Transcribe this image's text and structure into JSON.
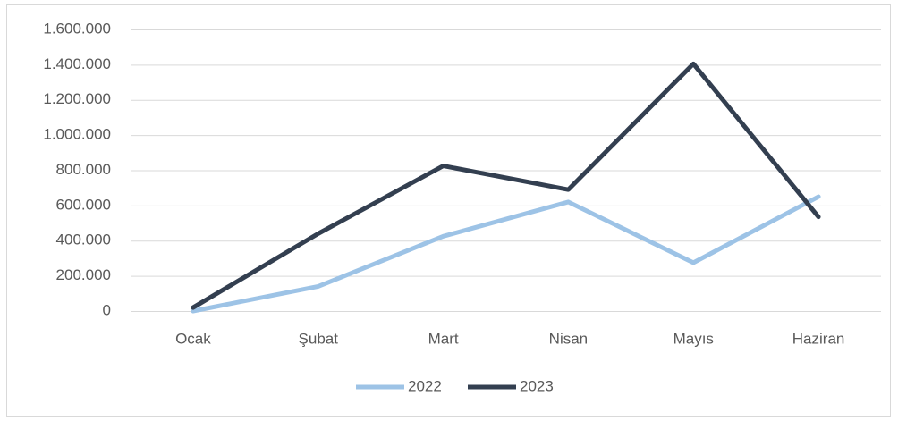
{
  "chart_data": {
    "type": "line",
    "categories": [
      "Ocak",
      "Şubat",
      "Mart",
      "Nisan",
      "Mayıs",
      "Haziran"
    ],
    "series": [
      {
        "name": "2022",
        "color": "#9dc3e6",
        "values": [
          0,
          140000,
          425000,
          620000,
          275000,
          650000
        ]
      },
      {
        "name": "2023",
        "color": "#333f50",
        "values": [
          20000,
          440000,
          825000,
          690000,
          1405000,
          535000
        ]
      }
    ],
    "ylim": [
      0,
      1600000
    ],
    "yticks": [
      0,
      {
        "value": 200000,
        "label": "200.000"
      },
      {
        "value": 400000,
        "label": "400.000"
      },
      {
        "value": 600000,
        "label": "600.000"
      },
      {
        "value": 800000,
        "label": "800.000"
      },
      {
        "value": 1000000,
        "label": "1.000.000"
      },
      {
        "value": 1200000,
        "label": "1.200.000"
      },
      {
        "value": 1400000,
        "label": "1.400.000"
      },
      {
        "value": 1600000,
        "label": "1.600.000"
      }
    ],
    "grid": true,
    "legend": "bottom"
  }
}
